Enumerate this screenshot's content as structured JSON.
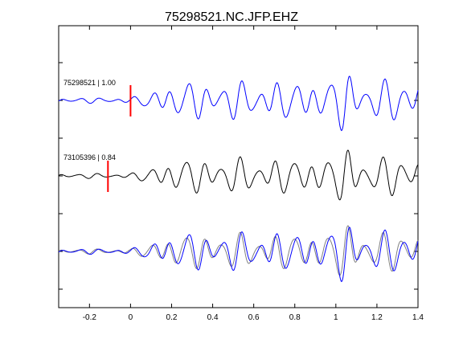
{
  "chart_data": {
    "type": "line",
    "title": "75298521.NC.JFP.EHZ",
    "xlabel": "",
    "ylabel": "",
    "xlim": [
      -0.35,
      1.4
    ],
    "x_ticks": [
      -0.2,
      0,
      0.2,
      0.4,
      0.6,
      0.8,
      1,
      1.2,
      1.4
    ],
    "x_tick_labels": [
      "-0.2",
      "0",
      "0.2",
      "0.4",
      "0.6",
      "0.8",
      "1",
      "1.2",
      "1.4"
    ],
    "grid": false,
    "legend": "none",
    "colors": {
      "template": "#0000ff",
      "match": "#000000",
      "overlay_match": "#808080",
      "pick": "#ff0000",
      "axes": "#000000"
    },
    "traces": [
      {
        "label": "75298521 | 1.00",
        "color": "#0000ff",
        "pick_time": 0.0
      },
      {
        "label": "73105396 | 0.84",
        "color": "#000000",
        "pick_time": -0.11
      }
    ],
    "overlay": {
      "series": [
        "75298521",
        "73105396"
      ],
      "colors": [
        "#0000ff",
        "#808080"
      ]
    }
  }
}
